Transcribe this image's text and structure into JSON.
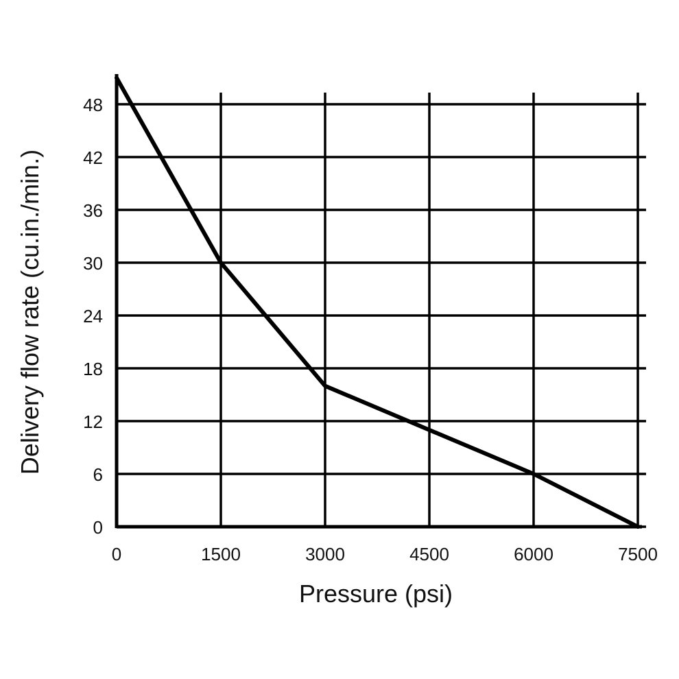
{
  "chart_data": {
    "type": "line",
    "title": "",
    "xlabel": "Pressure (psi)",
    "ylabel": "Delivery flow rate (cu.in./min.)",
    "xlim": [
      0,
      7500
    ],
    "ylim": [
      0,
      48
    ],
    "x_ticks": [
      0,
      1500,
      3000,
      4500,
      6000,
      7500
    ],
    "y_ticks": [
      0,
      6,
      12,
      18,
      24,
      30,
      36,
      42,
      48
    ],
    "grid": true,
    "legend": "none",
    "series": [
      {
        "x": [
          0,
          1500,
          3000,
          6000,
          7500
        ],
        "y": [
          51,
          30,
          16,
          6,
          0
        ]
      }
    ],
    "colors": {
      "line": "#000000",
      "grid": "#000000",
      "text": "#111111",
      "background": "#ffffff"
    }
  }
}
